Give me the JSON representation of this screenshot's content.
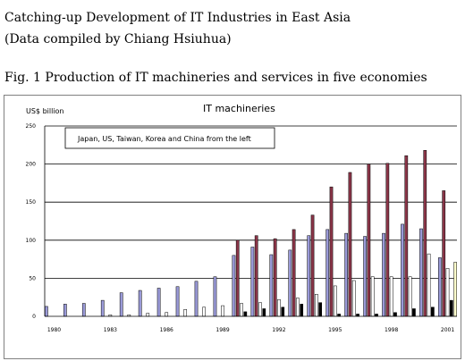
{
  "header": {
    "title": "Catching-up Development of IT Industries in East Asia",
    "subtitle": "(Data compiled by Chiang Hsiuhua)",
    "figure_caption": "Fig. 1 Production of IT machineries and services in five economies"
  },
  "colors": {
    "japan": "#9a9ad8",
    "us": "#8a3548",
    "taiwan": "#ffffff",
    "korea": "#000000",
    "china": "#ffffcc",
    "gridline": "#000000"
  },
  "chart_data": {
    "type": "bar",
    "title": "IT machineries",
    "ylabel": "US$ billion",
    "xlabel": "",
    "ylim": [
      0,
      250
    ],
    "yticks": [
      0,
      50,
      100,
      150,
      200,
      250
    ],
    "grid": true,
    "legend_note": "Japan, US, Taiwan, Korea and China from the left",
    "categories": [
      "1980",
      "1981",
      "1982",
      "1983",
      "1984",
      "1985",
      "1986",
      "1987",
      "1988",
      "1989",
      "1990",
      "1991",
      "1992",
      "1993",
      "1994",
      "1995",
      "1996",
      "1997",
      "1998",
      "1999",
      "2000",
      "2001"
    ],
    "xtick_labels": [
      "1980",
      "1983",
      "1986",
      "1989",
      "1992",
      "1995",
      "1998",
      "2001"
    ],
    "series": [
      {
        "key": "japan",
        "values": [
          13,
          16,
          17,
          21,
          31,
          34,
          37,
          39,
          46,
          52,
          80,
          91,
          81,
          87,
          106,
          114,
          109,
          105,
          109,
          121,
          115,
          77
        ]
      },
      {
        "key": "us",
        "values": [
          null,
          null,
          null,
          null,
          null,
          null,
          null,
          null,
          null,
          null,
          100,
          106,
          102,
          114,
          133,
          170,
          189,
          200,
          201,
          211,
          218,
          165
        ]
      },
      {
        "key": "taiwan",
        "values": [
          0,
          0,
          0,
          2,
          2,
          4,
          5,
          9,
          12,
          14,
          17,
          18,
          22,
          24,
          29,
          40,
          47,
          52,
          52,
          52,
          82,
          63
        ]
      },
      {
        "key": "korea",
        "values": [
          0,
          0,
          0,
          0,
          0,
          0,
          0,
          0,
          0,
          0,
          6,
          10,
          12,
          16,
          18,
          3,
          3,
          3,
          5,
          10,
          12,
          21
        ]
      },
      {
        "key": "china",
        "values": [
          0,
          0,
          0,
          0,
          0,
          0,
          0,
          0,
          0,
          0,
          0,
          0,
          0,
          0,
          0,
          0,
          0,
          0,
          0,
          0,
          0,
          71
        ]
      }
    ]
  }
}
